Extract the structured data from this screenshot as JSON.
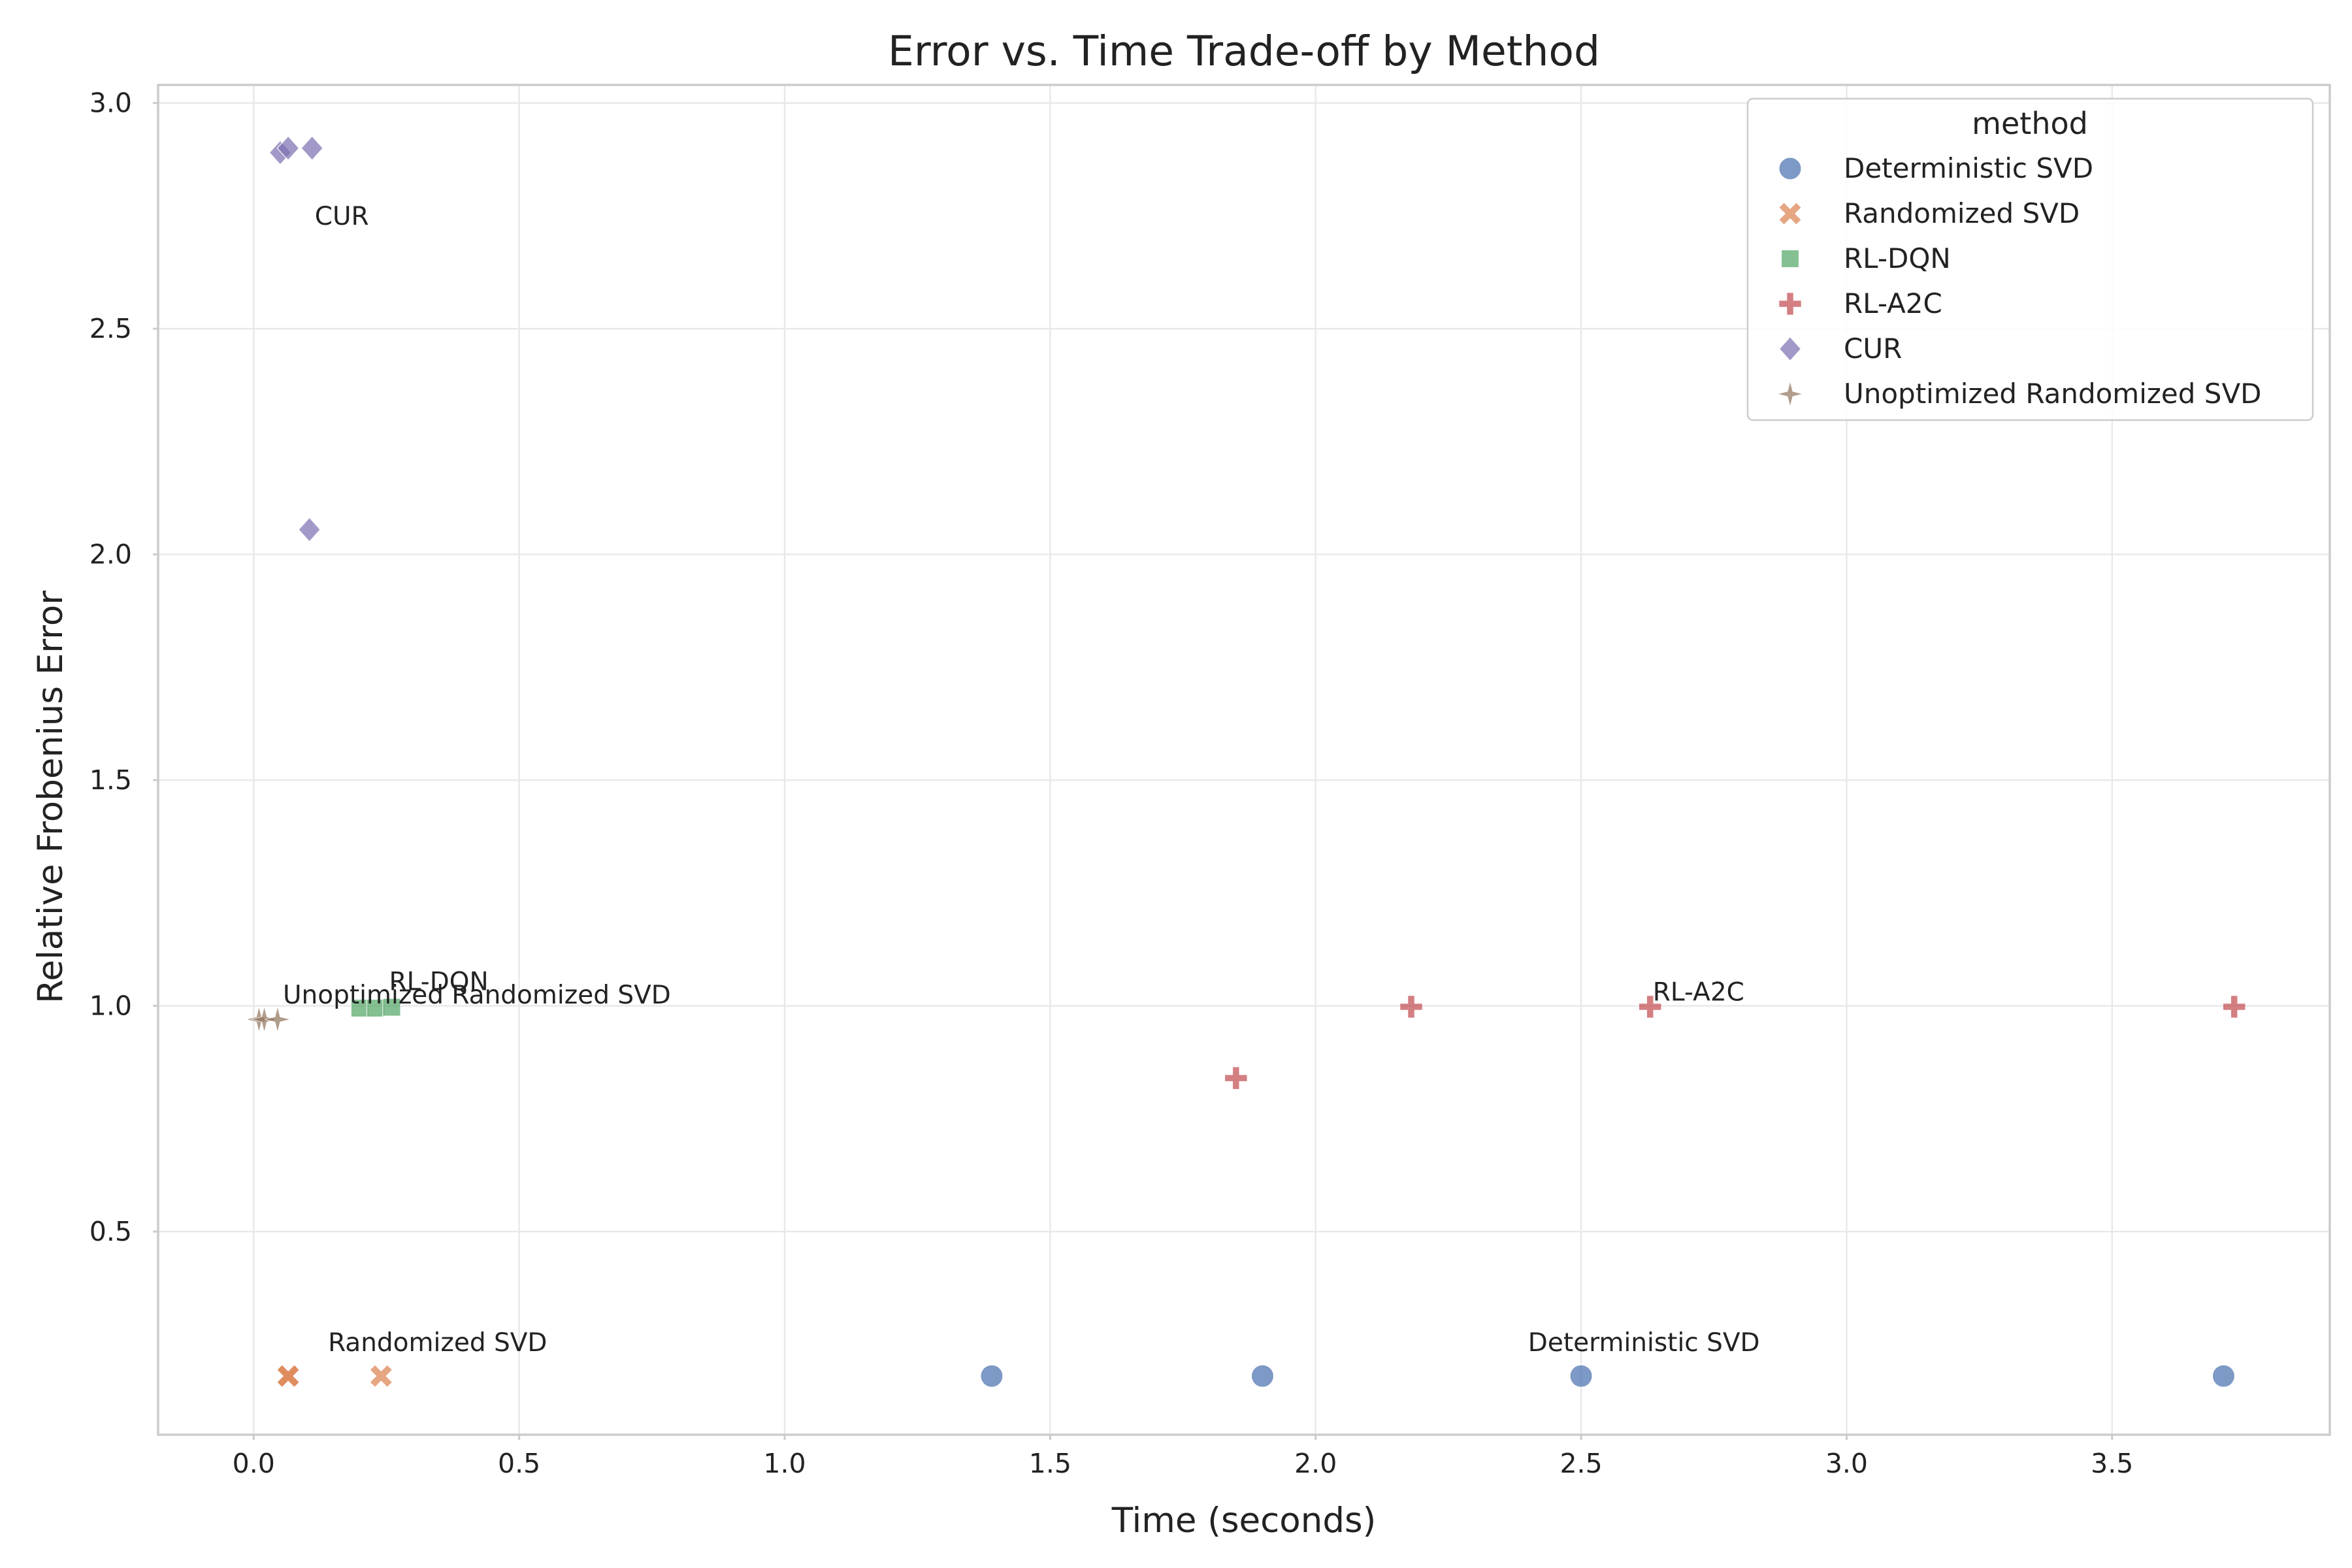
{
  "chart_data": {
    "type": "scatter",
    "title": "Error vs. Time Trade-off by Method",
    "xlabel": "Time (seconds)",
    "ylabel": "Relative Frobenius Error",
    "xlim": [
      -0.18,
      3.91
    ],
    "ylim": [
      0.05,
      3.04
    ],
    "xticks": [
      0.0,
      0.5,
      1.0,
      1.5,
      2.0,
      2.5,
      3.0,
      3.5
    ],
    "xtick_labels": [
      "0.0",
      "0.5",
      "1.0",
      "1.5",
      "2.0",
      "2.5",
      "3.0",
      "3.5"
    ],
    "yticks": [
      0.5,
      1.0,
      1.5,
      2.0,
      2.5,
      3.0
    ],
    "ytick_labels": [
      "0.5",
      "1.0",
      "1.5",
      "2.0",
      "2.5",
      "3.0"
    ],
    "grid": true,
    "legend": {
      "title": "method",
      "position": "top-right"
    },
    "series": [
      {
        "name": "Deterministic SVD",
        "marker": "circle",
        "color": "#4c72b0",
        "points": [
          [
            1.39,
            0.18
          ],
          [
            1.9,
            0.18
          ],
          [
            2.5,
            0.18
          ],
          [
            3.71,
            0.18
          ]
        ]
      },
      {
        "name": "Randomized SVD",
        "marker": "x",
        "color": "#dd8452",
        "points": [
          [
            0.065,
            0.18
          ],
          [
            0.065,
            0.18
          ],
          [
            0.24,
            0.18
          ]
        ]
      },
      {
        "name": "RL-DQN",
        "marker": "square",
        "color": "#55a868",
        "points": [
          [
            0.2,
            0.995
          ],
          [
            0.23,
            0.995
          ],
          [
            0.26,
            0.997
          ]
        ]
      },
      {
        "name": "RL-A2C",
        "marker": "plus",
        "color": "#c44e52",
        "points": [
          [
            1.85,
            0.84
          ],
          [
            2.18,
            0.998
          ],
          [
            2.63,
            0.998
          ],
          [
            3.73,
            0.998
          ]
        ]
      },
      {
        "name": "CUR",
        "marker": "diamond",
        "color": "#8172b3",
        "points": [
          [
            0.05,
            2.89
          ],
          [
            0.065,
            2.9
          ],
          [
            0.11,
            2.9
          ],
          [
            0.105,
            2.055
          ]
        ]
      },
      {
        "name": "Unoptimized Randomized SVD",
        "marker": "star",
        "color": "#937860",
        "points": [
          [
            0.01,
            0.97
          ],
          [
            0.02,
            0.97
          ],
          [
            0.045,
            0.97
          ]
        ]
      }
    ],
    "annotations": [
      {
        "text": "CUR",
        "x": 0.115,
        "y": 2.73
      },
      {
        "text": "RL-DQN",
        "x": 0.255,
        "y": 1.035
      },
      {
        "text": "Unoptimized Randomized SVD",
        "x": 0.055,
        "y": 1.005
      },
      {
        "text": "RL-A2C",
        "x": 2.635,
        "y": 1.012
      },
      {
        "text": "Randomized SVD",
        "x": 0.14,
        "y": 0.235
      },
      {
        "text": "Deterministic SVD",
        "x": 2.4,
        "y": 0.235
      }
    ]
  }
}
